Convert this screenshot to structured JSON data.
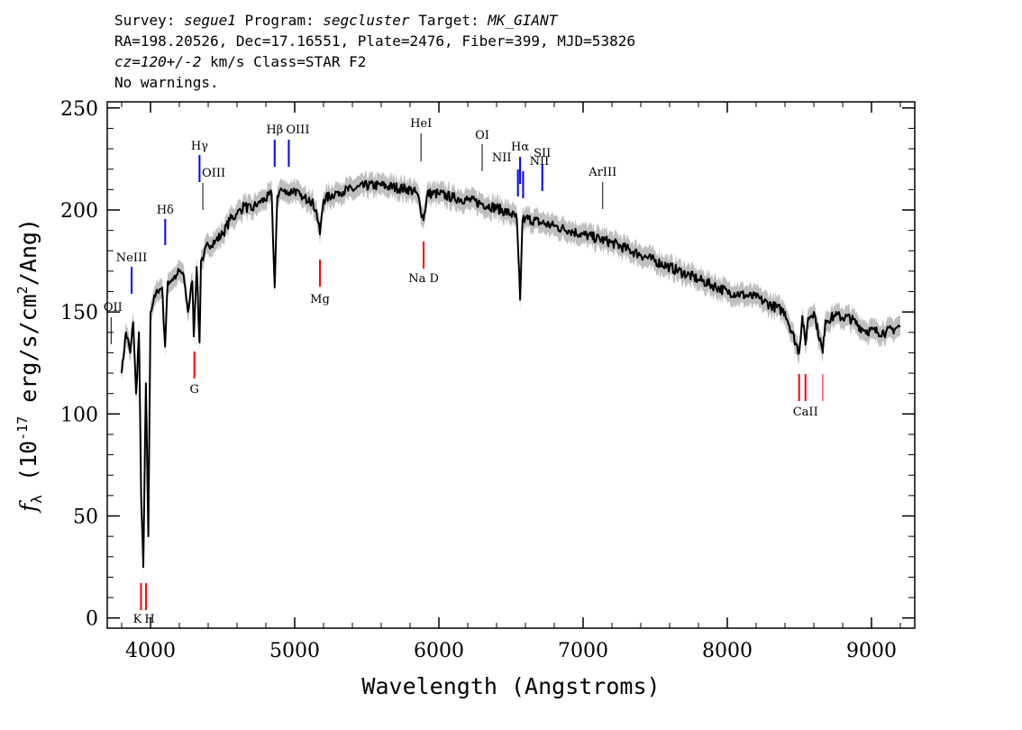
{
  "header": {
    "survey_label": "Survey:",
    "survey": "segue1",
    "program_label": "Program:",
    "program": "segcluster",
    "target_label": "Target:",
    "target": "MK_GIANT",
    "line2": "RA=198.20526, Dec=17.16551, Plate=2476, Fiber=399, MJD=53826",
    "cz": "cz=120+/-2",
    "cz_unit_class": "km/s Class=STAR F2",
    "warnings": "No warnings."
  },
  "chart_data": {
    "type": "line",
    "xlabel": "Wavelength (Angstroms)",
    "ylabel": "fλ (10^-17 erg/s/cm^2/Ang)",
    "xlim": [
      3700,
      9300
    ],
    "ylim": [
      -5,
      253
    ],
    "x_ticks": [
      4000,
      5000,
      6000,
      7000,
      8000,
      9000
    ],
    "y_ticks": [
      0,
      50,
      100,
      150,
      200,
      250
    ],
    "series": [
      {
        "color": "#000000",
        "x": [
          3800,
          3830,
          3860,
          3880,
          3900,
          3920,
          3935,
          3950,
          3968,
          3985,
          4000,
          4020,
          4050,
          4080,
          4101,
          4120,
          4150,
          4180,
          4200,
          4230,
          4260,
          4290,
          4300,
          4320,
          4340,
          4350,
          4370,
          4400,
          4450,
          4500,
          4550,
          4600,
          4650,
          4700,
          4750,
          4800,
          4840,
          4861,
          4880,
          4900,
          4950,
          5000,
          5050,
          5100,
          5150,
          5175,
          5200,
          5300,
          5400,
          5500,
          5600,
          5700,
          5800,
          5850,
          5893,
          5920,
          6000,
          6100,
          6200,
          6300,
          6400,
          6500,
          6540,
          6563,
          6580,
          6600,
          6700,
          6800,
          6900,
          7000,
          7200,
          7400,
          7600,
          7800,
          8000,
          8200,
          8400,
          8498,
          8520,
          8542,
          8560,
          8600,
          8662,
          8680,
          8750,
          8850,
          8950,
          9100,
          9200
        ],
        "values": [
          120,
          140,
          130,
          145,
          110,
          140,
          60,
          25,
          115,
          40,
          150,
          155,
          160,
          162,
          133,
          165,
          166,
          168,
          170,
          168,
          150,
          165,
          138,
          172,
          135,
          175,
          178,
          183,
          185,
          188,
          195,
          198,
          202,
          200,
          204,
          205,
          208,
          162,
          207,
          210,
          208,
          210,
          205,
          206,
          200,
          188,
          205,
          209,
          210,
          212,
          212,
          211,
          210,
          208,
          195,
          208,
          208,
          206,
          205,
          203,
          201,
          198,
          196,
          156,
          195,
          196,
          194,
          192,
          190,
          188,
          184,
          178,
          172,
          166,
          160,
          157,
          150,
          130,
          148,
          134,
          147,
          150,
          130,
          146,
          148,
          147,
          141,
          140,
          143
        ],
        "errors_color": "#bfbfbf"
      }
    ],
    "emission_lines": [
      {
        "label": "NeIII",
        "wave": 3869
      },
      {
        "label": "Hδ",
        "wave": 4102
      },
      {
        "label": "Hγ",
        "wave": 4340
      },
      {
        "label": "OIII",
        "wave": 4363
      },
      {
        "label": "Hβ",
        "wave": 4861
      },
      {
        "label": "OIII",
        "wave": 4959
      },
      {
        "label": "HeI",
        "wave": 5876
      },
      {
        "label": "OI",
        "wave": 6300
      },
      {
        "label": "NII",
        "wave": 6548
      },
      {
        "label": "Hα",
        "wave": 6563
      },
      {
        "label": "NII",
        "wave": 6584
      },
      {
        "label": "SII",
        "wave": 6717
      },
      {
        "label": "ArIII",
        "wave": 7136
      },
      {
        "label": "OII",
        "wave": 3727
      }
    ],
    "absorption_lines": [
      {
        "label": "K",
        "wave": 3934
      },
      {
        "label": "H",
        "wave": 3969
      },
      {
        "label": "G",
        "wave": 4304
      },
      {
        "label": "Mg",
        "wave": 5175
      },
      {
        "label": "Na D",
        "wave": 5894
      },
      {
        "label": "CaII",
        "wave": 8542
      }
    ],
    "colors": {
      "balmer": "#0000ff",
      "absorption": "#ff0000",
      "other": "#000000",
      "error_band": "#bfbfbf"
    }
  }
}
